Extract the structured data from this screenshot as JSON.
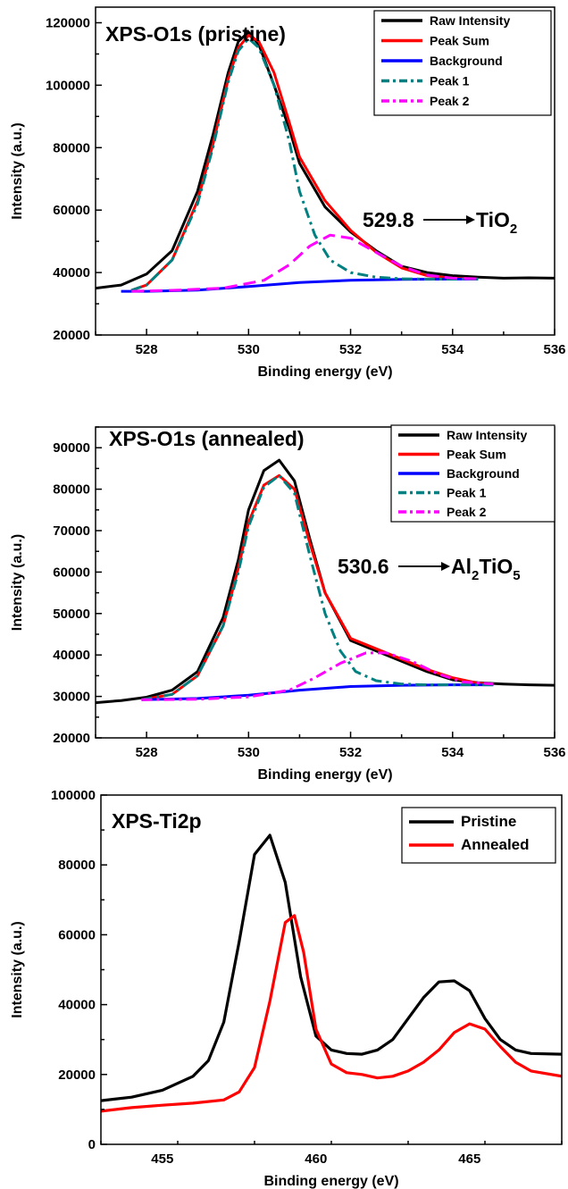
{
  "chart_data": [
    {
      "type": "line",
      "title": "XPS-O1s (pristine)",
      "xlabel": "Binding energy (eV)",
      "ylabel": "Intensity (a.u.)",
      "xlim": [
        527,
        536
      ],
      "ylim": [
        20000,
        125000
      ],
      "xticks": [
        528,
        530,
        532,
        534,
        536
      ],
      "yticks": [
        20000,
        40000,
        60000,
        80000,
        100000,
        120000
      ],
      "legend_position": "top-right",
      "annotation": {
        "value": "529.8",
        "compound": "TiO",
        "subscript": "2",
        "text": "529.8 → TiO2"
      },
      "series": [
        {
          "name": "Raw Intensity",
          "color": "#000000",
          "style": "solid",
          "x": [
            527,
            527.5,
            528,
            528.5,
            529,
            529.3,
            529.6,
            529.8,
            530,
            530.2,
            530.5,
            530.8,
            531,
            531.5,
            532,
            532.5,
            533,
            533.5,
            534,
            534.5,
            535,
            535.5,
            536
          ],
          "y": [
            35000,
            36000,
            39500,
            47000,
            66000,
            84000,
            104000,
            114000,
            117000,
            113000,
            100000,
            86000,
            75000,
            61000,
            53000,
            47000,
            42000,
            40000,
            39000,
            38500,
            38200,
            38300,
            38200
          ]
        },
        {
          "name": "Peak Sum",
          "color": "#ff0000",
          "style": "solid",
          "x": [
            527.7,
            528,
            528.5,
            529,
            529.3,
            529.6,
            529.8,
            530,
            530.2,
            530.5,
            530.8,
            531,
            531.5,
            532,
            532.5,
            533,
            533.5,
            534,
            534.5
          ],
          "y": [
            34300,
            36000,
            44000,
            63000,
            81000,
            102000,
            112000,
            116000,
            114000,
            104000,
            88000,
            77000,
            63000,
            53500,
            46500,
            41500,
            39000,
            38200,
            38000
          ]
        },
        {
          "name": "Background",
          "color": "#0000ff",
          "style": "solid",
          "x": [
            527.5,
            528,
            529,
            530,
            531,
            532,
            533,
            534,
            534.5
          ],
          "y": [
            34000,
            34000,
            34400,
            35500,
            36800,
            37500,
            37800,
            37900,
            37900
          ]
        },
        {
          "name": "Peak 1",
          "color": "#008080",
          "style": "dashdot",
          "x": [
            527.7,
            528,
            528.5,
            529,
            529.3,
            529.6,
            529.8,
            530,
            530.2,
            530.5,
            530.8,
            531,
            531.3,
            531.6,
            532,
            532.5,
            533,
            533.5,
            534,
            534.5
          ],
          "y": [
            34300,
            36000,
            44000,
            62000,
            80000,
            101000,
            111000,
            115000,
            112000,
            100000,
            82000,
            66000,
            52000,
            44000,
            40000,
            38500,
            38000,
            37900,
            37900,
            37900
          ]
        },
        {
          "name": "Peak 2",
          "color": "#ff00ff",
          "style": "dashed",
          "x": [
            527.7,
            528.5,
            529.5,
            530.3,
            530.8,
            531.2,
            531.6,
            532,
            532.5,
            533,
            533.5,
            534,
            534.5
          ],
          "y": [
            34000,
            34300,
            35000,
            37500,
            42500,
            48500,
            52000,
            51000,
            46500,
            42000,
            39200,
            38200,
            38000
          ]
        }
      ]
    },
    {
      "type": "line",
      "title": "XPS-O1s (annealed)",
      "xlabel": "Binding energy (eV)",
      "ylabel": "Intensity (a.u.)",
      "xlim": [
        527,
        536
      ],
      "ylim": [
        20000,
        95000
      ],
      "xticks": [
        528,
        530,
        532,
        534,
        536
      ],
      "yticks": [
        20000,
        30000,
        40000,
        50000,
        60000,
        70000,
        80000,
        90000
      ],
      "legend_position": "top-right",
      "annotation": {
        "value": "530.6",
        "compound": "Al",
        "subscript": "2",
        "compound2": "TiO",
        "subscript2": "5",
        "text": "530.6 → Al2TiO5"
      },
      "series": [
        {
          "name": "Raw Intensity",
          "color": "#000000",
          "style": "solid",
          "x": [
            527,
            527.5,
            528,
            528.5,
            529,
            529.5,
            529.8,
            530,
            530.3,
            530.6,
            530.9,
            531.2,
            531.5,
            532,
            532.5,
            533,
            533.5,
            534,
            534.5,
            535,
            535.5,
            536
          ],
          "y": [
            28500,
            29000,
            29800,
            31500,
            36000,
            49000,
            63000,
            75000,
            84500,
            87000,
            82000,
            68000,
            55000,
            43500,
            41000,
            38500,
            36000,
            34000,
            33300,
            33000,
            32800,
            32700
          ]
        },
        {
          "name": "Peak Sum",
          "color": "#ff0000",
          "style": "solid",
          "x": [
            527.9,
            528.5,
            529,
            529.5,
            529.8,
            530,
            530.3,
            530.6,
            530.9,
            531.2,
            531.5,
            532,
            532.5,
            533,
            533.5,
            534,
            534.5,
            534.8
          ],
          "y": [
            29200,
            30500,
            35000,
            47000,
            61000,
            72000,
            81000,
            83300,
            80000,
            67000,
            55000,
            44000,
            41500,
            39000,
            36500,
            34500,
            33200,
            33000
          ]
        },
        {
          "name": "Background",
          "color": "#0000ff",
          "style": "solid",
          "x": [
            527.9,
            529,
            530,
            531,
            532,
            533,
            534,
            534.8
          ],
          "y": [
            29200,
            29500,
            30300,
            31500,
            32400,
            32700,
            32800,
            32800
          ]
        },
        {
          "name": "Peak 1",
          "color": "#008080",
          "style": "dashdot",
          "x": [
            527.9,
            528.5,
            529,
            529.5,
            529.8,
            530,
            530.3,
            530.6,
            530.9,
            531.2,
            531.5,
            531.8,
            532.1,
            532.5,
            533,
            533.5,
            534,
            534.8
          ],
          "y": [
            29200,
            30500,
            35000,
            47000,
            60000,
            71000,
            80500,
            83300,
            79000,
            64000,
            50000,
            41000,
            36000,
            33800,
            33000,
            32800,
            32800,
            32800
          ]
        },
        {
          "name": "Peak 2",
          "color": "#ff00ff",
          "style": "dashdot",
          "x": [
            527.9,
            529,
            530,
            530.8,
            531.3,
            531.8,
            532.3,
            532.7,
            533.2,
            533.7,
            534.2,
            534.8
          ],
          "y": [
            29200,
            29300,
            29900,
            31500,
            34500,
            38000,
            40500,
            40500,
            38500,
            35500,
            33500,
            33000
          ]
        }
      ]
    },
    {
      "type": "line",
      "title": "XPS-Ti2p",
      "xlabel": "Binding energy (eV)",
      "ylabel": "Intensity (a.u.)",
      "xlim": [
        453,
        468
      ],
      "ylim": [
        0,
        100000
      ],
      "xticks": [
        455,
        460,
        465
      ],
      "yticks": [
        0,
        20000,
        40000,
        60000,
        80000,
        100000
      ],
      "legend_position": "top-right",
      "series": [
        {
          "name": "Pristine",
          "color": "#000000",
          "style": "solid",
          "x": [
            453,
            454,
            455,
            456,
            456.5,
            457,
            457.5,
            458,
            458.5,
            459,
            459.5,
            460,
            460.5,
            461,
            461.5,
            462,
            462.5,
            463,
            463.5,
            464,
            464.5,
            465,
            465.5,
            466,
            466.5,
            467,
            468
          ],
          "y": [
            12500,
            13500,
            15500,
            19500,
            24000,
            35000,
            58000,
            83000,
            88500,
            75000,
            48000,
            31000,
            27000,
            26000,
            25800,
            27000,
            30000,
            36000,
            42000,
            46500,
            46800,
            44000,
            36000,
            30000,
            27000,
            26000,
            25800
          ]
        },
        {
          "name": "Annealed",
          "color": "#ff0000",
          "style": "solid",
          "x": [
            453,
            454,
            455,
            456,
            457,
            457.5,
            458,
            458.5,
            459,
            459.3,
            459.6,
            460,
            460.5,
            461,
            461.5,
            462,
            462.5,
            463,
            463.5,
            464,
            464.5,
            465,
            465.5,
            466,
            466.5,
            467,
            468
          ],
          "y": [
            9500,
            10500,
            11200,
            11800,
            12700,
            15000,
            22000,
            41000,
            63500,
            65500,
            55000,
            33000,
            23000,
            20500,
            20000,
            19000,
            19500,
            21000,
            23500,
            27000,
            32000,
            34500,
            33000,
            28000,
            23500,
            21000,
            19500
          ]
        }
      ]
    }
  ]
}
